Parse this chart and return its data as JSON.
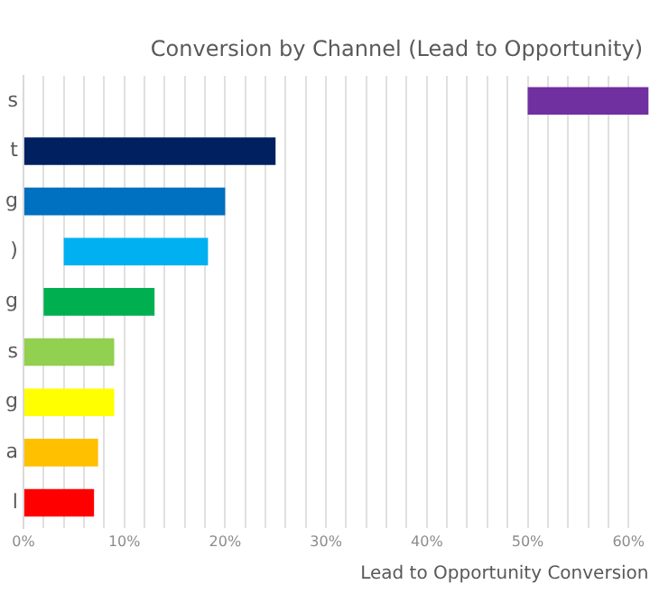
{
  "chart_data": {
    "type": "bar",
    "orientation": "horizontal",
    "title": "Conversion by Channel (Lead to Opportunity)",
    "xlabel": "Lead to Opportunity Conversion",
    "categories": [
      "s",
      "t",
      "g",
      ")",
      "g",
      "s",
      "g",
      "a",
      "l"
    ],
    "values": [
      12,
      25,
      20,
      14.3,
      11,
      9,
      9,
      7.4,
      7
    ],
    "base": [
      50,
      0,
      0,
      4,
      2,
      0,
      0,
      0,
      0
    ],
    "colors": [
      "#7030a0",
      "#002060",
      "#0070c0",
      "#00b0f0",
      "#00b050",
      "#92d050",
      "#ffff00",
      "#ffc000",
      "#ff0000"
    ],
    "xlim": [
      0,
      62
    ],
    "xticks": [
      {
        "value": 0,
        "label": "0%"
      },
      {
        "value": 2,
        "label": null
      },
      {
        "value": 4,
        "label": null
      },
      {
        "value": 6,
        "label": null
      },
      {
        "value": 8,
        "label": null
      },
      {
        "value": 10,
        "label": "10%"
      },
      {
        "value": 12,
        "label": null
      },
      {
        "value": 14,
        "label": null
      },
      {
        "value": 16,
        "label": null
      },
      {
        "value": 18,
        "label": null
      },
      {
        "value": 20,
        "label": "20%"
      },
      {
        "value": 22,
        "label": null
      },
      {
        "value": 24,
        "label": null
      },
      {
        "value": 26,
        "label": null
      },
      {
        "value": 28,
        "label": null
      },
      {
        "value": 30,
        "label": "30%"
      },
      {
        "value": 32,
        "label": null
      },
      {
        "value": 34,
        "label": null
      },
      {
        "value": 36,
        "label": null
      },
      {
        "value": 38,
        "label": null
      },
      {
        "value": 40,
        "label": "40%"
      },
      {
        "value": 42,
        "label": null
      },
      {
        "value": 44,
        "label": null
      },
      {
        "value": 46,
        "label": null
      },
      {
        "value": 48,
        "label": null
      },
      {
        "value": 50,
        "label": "50%"
      },
      {
        "value": 52,
        "label": null
      },
      {
        "value": 54,
        "label": null
      },
      {
        "value": 56,
        "label": null
      },
      {
        "value": 58,
        "label": null
      },
      {
        "value": 60,
        "label": "60%"
      }
    ],
    "grid": "x",
    "legend": false
  }
}
